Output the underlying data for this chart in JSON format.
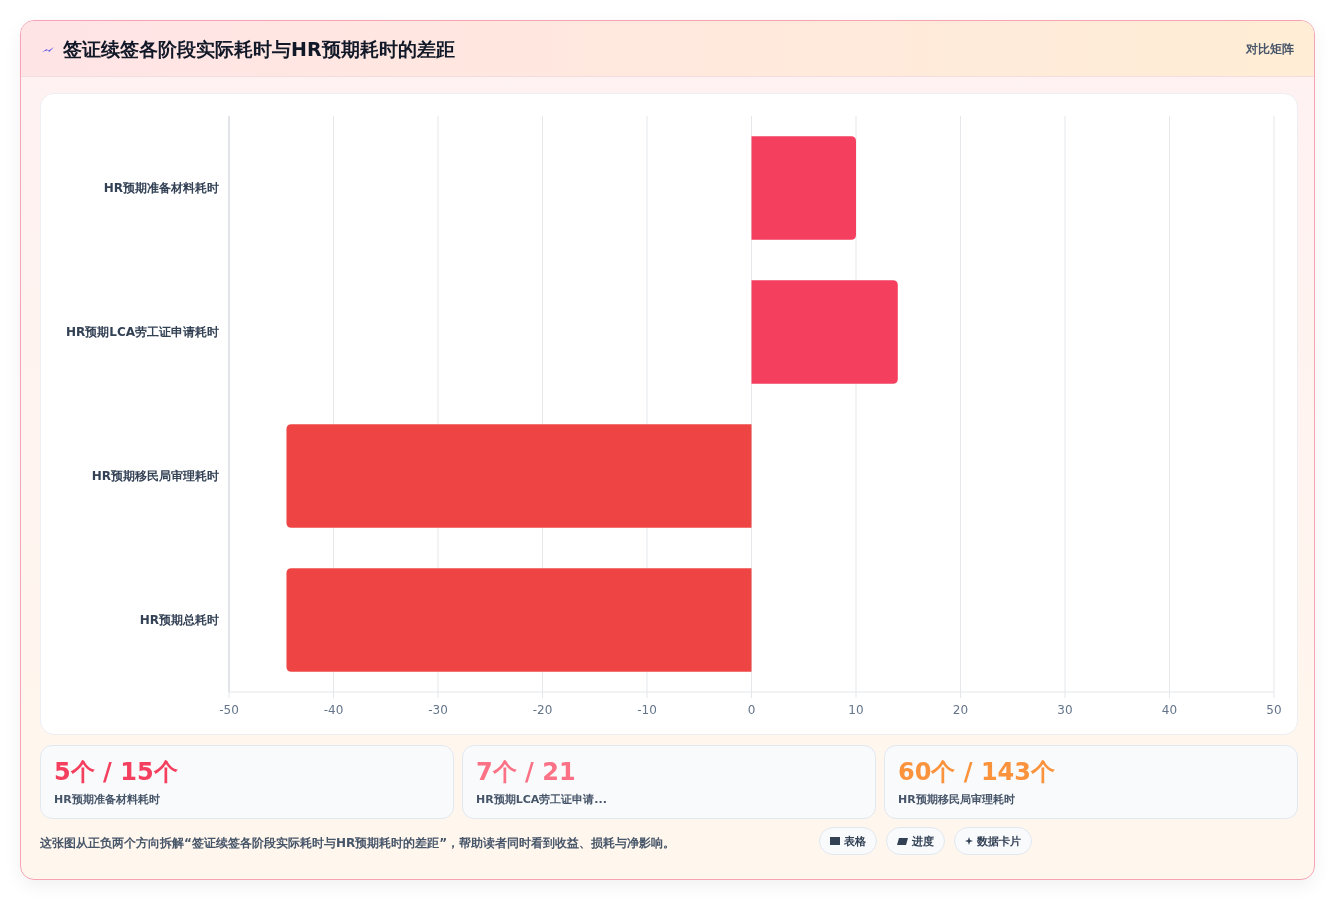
{
  "chart_data": [
    {
      "type": "bar",
      "orientation": "horizontal",
      "title": "签证续签各阶段实际耗时与HR预期耗时的差距",
      "categories": [
        "HR预期准备材料耗时",
        "HR预期LCA劳工证申请耗时",
        "HR预期移民局审理耗时",
        "HR预期总耗时"
      ],
      "values": [
        10,
        14,
        -44.5,
        -44.5
      ],
      "colors": [
        "#f43f5e",
        "#f43f5e",
        "#ef4444",
        "#ef4444"
      ],
      "xlim": [
        -50,
        50
      ],
      "xticks": [
        -50,
        -40,
        -30,
        -20,
        -10,
        0,
        10,
        20,
        30,
        40,
        50
      ],
      "grid": "x",
      "annotations": [
        "对比矩阵",
        "这张图从正负两个方向拆解“签证续签各阶段实际耗时与HR预期耗时的差距”，帮助读者同时看到收益、损耗与净影响。",
        "表格",
        "进度",
        "数据卡片"
      ]
    },
    {
      "type": "other",
      "title": "5个 / 15个",
      "subtitle": "HR预期准备材料耗时"
    },
    {
      "type": "other",
      "title": "7个 / 21",
      "subtitle": "HR预期LCA劳工证申请..."
    },
    {
      "type": "other",
      "title": "60个 / 143个",
      "subtitle": "HR预期移民局审理耗时"
    }
  ]
}
